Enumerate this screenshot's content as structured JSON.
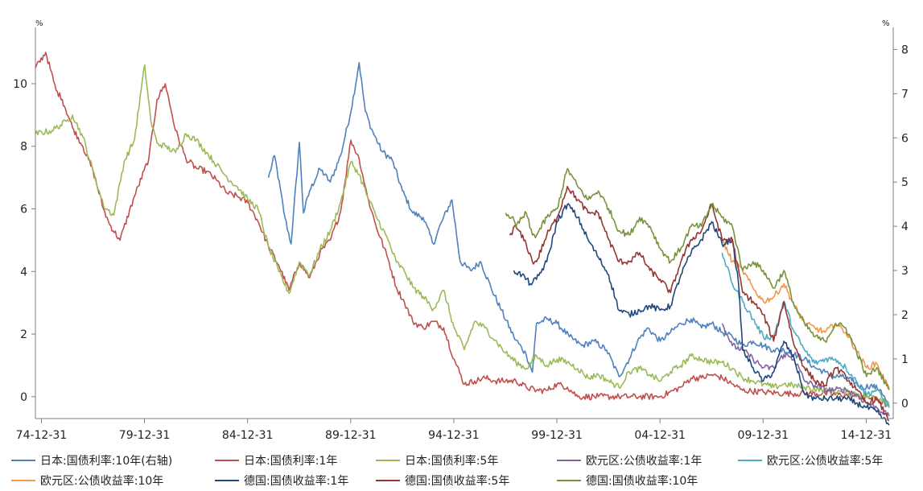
{
  "chart_data": {
    "type": "line",
    "left_axis": {
      "unit": "%",
      "ticks": [
        0,
        2,
        4,
        6,
        8,
        10
      ],
      "tick_labels": [
        "0",
        "2",
        "4",
        "6",
        "8",
        "10"
      ],
      "ylim": [
        -0.7,
        11.8
      ]
    },
    "right_axis": {
      "unit": "%",
      "ticks": [
        0,
        1,
        2,
        3,
        4,
        5,
        6,
        7,
        8
      ],
      "tick_labels": [
        "0",
        "1",
        "2",
        "3",
        "4",
        "5",
        "6",
        "7",
        "8"
      ],
      "ylim": [
        -0.35,
        8.5
      ]
    },
    "x_ticks": [
      "74-12-31",
      "79-12-31",
      "84-12-31",
      "89-12-31",
      "94-12-31",
      "99-12-31",
      "04-12-31",
      "09-12-31",
      "14-12-31"
    ],
    "x_tick_years": [
      1974.99,
      1979.99,
      1984.99,
      1989.99,
      1994.99,
      1999.99,
      2004.99,
      2009.99,
      2014.99
    ],
    "xlim": [
      1974.7,
      2016.3
    ],
    "grid": false,
    "legend_position": "bottom",
    "series": [
      {
        "name": "日本:国债利率:10年(右轴)",
        "color": "#4f81bd",
        "axis": "right",
        "x": [
          1986.0,
          1986.3,
          1986.8,
          1987.1,
          1987.5,
          1987.7,
          1988.0,
          1988.5,
          1989.0,
          1989.5,
          1990.0,
          1990.4,
          1990.7,
          1991.0,
          1991.5,
          1992.0,
          1992.5,
          1993.0,
          1993.5,
          1994.0,
          1994.4,
          1994.9,
          1995.3,
          1995.8,
          1996.3,
          1996.8,
          1997.3,
          1997.9,
          1998.5,
          1998.8,
          1999.0,
          1999.5,
          2000.0,
          2000.6,
          2001.2,
          2001.8,
          2002.4,
          2003.0,
          2003.5,
          2003.9,
          2004.4,
          2005.0,
          2005.5,
          2006.0,
          2006.5,
          2007.0,
          2007.5,
          2008.0,
          2008.5,
          2009.0,
          2009.5,
          2010.0,
          2010.5,
          2011.0,
          2011.5,
          2012.0,
          2012.5,
          2013.0,
          2013.3,
          2013.8,
          2014.3,
          2014.8,
          2015.2,
          2015.7,
          2016.1
        ],
        "y": [
          5.1,
          5.6,
          4.2,
          3.6,
          5.9,
          4.3,
          4.8,
          5.3,
          5.0,
          5.6,
          6.6,
          7.7,
          6.6,
          6.2,
          5.7,
          5.5,
          4.8,
          4.3,
          4.2,
          3.6,
          4.1,
          4.6,
          3.2,
          3.0,
          3.2,
          2.6,
          2.1,
          1.5,
          1.1,
          0.7,
          1.8,
          1.9,
          1.8,
          1.5,
          1.3,
          1.4,
          1.2,
          0.6,
          1.0,
          1.4,
          1.7,
          1.4,
          1.6,
          1.8,
          1.9,
          1.7,
          1.8,
          1.6,
          1.5,
          1.3,
          1.4,
          1.3,
          1.2,
          1.2,
          1.1,
          1.0,
          0.8,
          0.7,
          0.6,
          0.6,
          0.5,
          0.35,
          0.4,
          0.3,
          -0.1
        ]
      },
      {
        "name": "日本:国债利率:1年",
        "color": "#c0504d",
        "axis": "left",
        "x": [
          1974.7,
          1975.2,
          1975.7,
          1976.0,
          1976.5,
          1977.0,
          1977.5,
          1978.0,
          1978.3,
          1978.8,
          1979.5,
          1980.2,
          1980.6,
          1981.0,
          1981.5,
          1982.0,
          1982.5,
          1983.0,
          1983.5,
          1984.0,
          1984.5,
          1985.0,
          1985.5,
          1986.0,
          1986.5,
          1987.0,
          1987.5,
          1988.0,
          1988.5,
          1989.0,
          1989.5,
          1990.0,
          1990.4,
          1990.8,
          1991.2,
          1991.8,
          1992.2,
          1992.6,
          1993.0,
          1993.5,
          1994.0,
          1994.5,
          1995.0,
          1995.5,
          1996.0,
          1996.5,
          1997.0,
          1997.5,
          1998.0,
          1998.5,
          1999.0,
          1999.5,
          2000.0,
          2000.5,
          2001.0,
          2002.0,
          2003.0,
          2004.0,
          2005.0,
          2006.0,
          2006.5,
          2007.0,
          2007.5,
          2008.0,
          2008.5,
          2009.0,
          2010.0,
          2011.0,
          2012.0,
          2013.0,
          2014.0,
          2014.5,
          2015.0,
          2015.5,
          2016.1
        ],
        "y": [
          10.5,
          11.0,
          9.8,
          9.5,
          8.6,
          8.0,
          7.2,
          6.0,
          5.5,
          5.0,
          6.4,
          7.6,
          9.5,
          10.0,
          8.5,
          7.6,
          7.3,
          7.2,
          6.9,
          6.5,
          6.4,
          6.2,
          5.6,
          4.8,
          4.2,
          3.4,
          4.3,
          3.8,
          4.6,
          5.0,
          5.9,
          8.2,
          7.6,
          6.4,
          5.5,
          4.4,
          3.5,
          3.0,
          2.4,
          2.2,
          2.4,
          2.2,
          1.2,
          0.4,
          0.5,
          0.6,
          0.5,
          0.5,
          0.5,
          0.3,
          0.2,
          0.2,
          0.4,
          0.3,
          0.0,
          0.0,
          0.0,
          0.0,
          0.0,
          0.3,
          0.6,
          0.6,
          0.7,
          0.6,
          0.4,
          0.2,
          0.15,
          0.1,
          0.1,
          0.1,
          0.05,
          0.0,
          0.0,
          -0.1,
          -0.3
        ]
      },
      {
        "name": "日本:国债利率:5年",
        "color": "#9bbb59",
        "axis": "left",
        "x": [
          1974.7,
          1975.5,
          1976.2,
          1976.5,
          1977.0,
          1977.5,
          1978.0,
          1978.5,
          1979.0,
          1979.5,
          1980.0,
          1980.3,
          1980.6,
          1981.0,
          1981.5,
          1982.0,
          1982.5,
          1983.0,
          1983.5,
          1984.0,
          1984.5,
          1985.0,
          1985.5,
          1986.0,
          1986.5,
          1987.0,
          1987.5,
          1988.0,
          1988.5,
          1989.0,
          1989.5,
          1990.0,
          1990.4,
          1990.8,
          1991.2,
          1991.8,
          1992.2,
          1992.6,
          1993.0,
          1993.5,
          1994.0,
          1994.5,
          1995.0,
          1995.5,
          1996.0,
          1996.5,
          1997.0,
          1997.5,
          1998.0,
          1998.5,
          1999.0,
          1999.5,
          2000.0,
          2000.5,
          2001.0,
          2001.5,
          2002.0,
          2002.5,
          2003.0,
          2003.5,
          2004.0,
          2004.5,
          2005.0,
          2005.5,
          2006.0,
          2006.5,
          2007.0,
          2007.5,
          2008.0,
          2008.5,
          2009.0,
          2009.5,
          2010.0,
          2010.5,
          2011.0,
          2012.0,
          2013.0,
          2014.0,
          2014.5,
          2015.0,
          2015.5,
          2016.1
        ],
        "y": [
          8.4,
          8.5,
          8.8,
          9.0,
          8.3,
          7.2,
          6.1,
          5.8,
          7.5,
          8.2,
          10.6,
          8.8,
          8.1,
          8.0,
          7.8,
          8.4,
          8.2,
          7.8,
          7.4,
          7.0,
          6.7,
          6.3,
          6.0,
          4.8,
          4.0,
          3.3,
          4.3,
          3.9,
          4.7,
          5.3,
          6.2,
          7.5,
          7.1,
          6.4,
          5.8,
          5.0,
          4.3,
          4.0,
          3.5,
          3.2,
          2.8,
          3.4,
          2.2,
          1.5,
          2.4,
          2.2,
          1.8,
          1.4,
          1.1,
          0.9,
          1.3,
          1.0,
          1.2,
          1.1,
          0.9,
          0.6,
          0.7,
          0.5,
          0.3,
          0.8,
          0.9,
          0.7,
          0.5,
          0.8,
          1.0,
          1.3,
          1.2,
          1.1,
          1.1,
          0.9,
          0.6,
          0.5,
          0.4,
          0.3,
          0.4,
          0.3,
          0.2,
          0.15,
          0.1,
          0.0,
          0.0,
          -0.2
        ]
      },
      {
        "name": "欧元区:公债收益率:1年",
        "color": "#8064a2",
        "axis": "right",
        "x": [
          2008.0,
          2008.5,
          2009.0,
          2009.5,
          2010.0,
          2010.5,
          2011.0,
          2011.5,
          2012.0,
          2012.5,
          2013.0,
          2013.5,
          2014.0,
          2014.5,
          2015.0,
          2015.5,
          2016.1
        ],
        "y": [
          1.8,
          1.3,
          1.2,
          1.0,
          0.8,
          0.8,
          1.1,
          1.0,
          0.5,
          0.4,
          0.3,
          0.3,
          0.3,
          0.2,
          0.0,
          -0.1,
          -0.3
        ]
      },
      {
        "name": "欧元区:公债收益率:5年",
        "color": "#4bacc6",
        "axis": "right",
        "x": [
          2008.0,
          2008.5,
          2009.0,
          2009.5,
          2010.0,
          2010.5,
          2011.0,
          2011.5,
          2012.0,
          2012.5,
          2013.0,
          2013.5,
          2014.0,
          2014.5,
          2015.0,
          2015.5,
          2016.1
        ],
        "y": [
          3.4,
          2.7,
          2.3,
          1.9,
          1.5,
          1.5,
          2.3,
          1.6,
          1.2,
          0.9,
          1.0,
          1.0,
          0.8,
          0.5,
          0.2,
          0.3,
          -0.1
        ]
      },
      {
        "name": "欧元区:公债收益率:10年",
        "color": "#f79646",
        "axis": "right",
        "x": [
          2008.0,
          2008.5,
          2009.0,
          2009.5,
          2010.0,
          2010.5,
          2011.0,
          2011.5,
          2012.0,
          2012.5,
          2013.0,
          2013.5,
          2014.0,
          2014.5,
          2015.0,
          2015.5,
          2016.1
        ],
        "y": [
          3.7,
          3.2,
          3.0,
          2.6,
          2.3,
          2.4,
          2.7,
          2.2,
          1.8,
          1.7,
          1.6,
          1.8,
          1.6,
          1.2,
          0.8,
          0.9,
          0.3
        ]
      },
      {
        "name": "德国:国债收益率:1年",
        "color": "#1f497d",
        "axis": "right",
        "x": [
          1997.9,
          1998.3,
          1998.7,
          1999.0,
          1999.5,
          2000.0,
          2000.5,
          2001.0,
          2001.5,
          2002.0,
          2002.5,
          2003.0,
          2003.5,
          2004.0,
          2004.5,
          2005.0,
          2005.5,
          2006.0,
          2006.5,
          2007.0,
          2007.5,
          2008.0,
          2008.5,
          2008.8,
          2009.0,
          2009.5,
          2010.0,
          2010.5,
          2011.0,
          2011.5,
          2012.0,
          2012.5,
          2013.0,
          2014.0,
          2014.5,
          2015.0,
          2015.5,
          2016.1
        ],
        "y": [
          3.0,
          2.9,
          2.7,
          2.8,
          3.2,
          4.1,
          4.5,
          4.2,
          3.7,
          3.3,
          2.9,
          2.1,
          2.0,
          2.1,
          2.2,
          2.1,
          2.2,
          2.9,
          3.4,
          3.7,
          4.1,
          3.6,
          3.7,
          2.7,
          1.2,
          0.8,
          0.5,
          0.7,
          1.4,
          1.0,
          0.2,
          0.1,
          0.1,
          0.1,
          0.0,
          -0.1,
          -0.2,
          -0.5
        ]
      },
      {
        "name": "德国:国债收益率:5年",
        "color": "#943634",
        "axis": "right",
        "x": [
          1997.7,
          1998.0,
          1998.5,
          1998.8,
          1999.0,
          1999.5,
          2000.0,
          2000.5,
          2001.0,
          2001.5,
          2002.0,
          2002.5,
          2003.0,
          2003.5,
          2004.0,
          2004.5,
          2005.0,
          2005.5,
          2006.0,
          2006.5,
          2007.0,
          2007.5,
          2008.0,
          2008.5,
          2009.0,
          2009.5,
          2010.0,
          2010.5,
          2011.0,
          2011.5,
          2012.0,
          2012.5,
          2013.0,
          2013.5,
          2014.0,
          2014.5,
          2015.0,
          2015.5,
          2016.1
        ],
        "y": [
          3.8,
          4.0,
          3.6,
          3.2,
          3.2,
          3.8,
          4.2,
          4.9,
          4.6,
          4.3,
          4.3,
          3.7,
          3.2,
          3.2,
          3.4,
          3.0,
          2.8,
          2.5,
          3.2,
          3.7,
          3.9,
          4.5,
          3.7,
          3.7,
          2.5,
          2.3,
          2.0,
          1.4,
          2.3,
          1.3,
          0.8,
          0.5,
          0.4,
          0.8,
          0.6,
          0.3,
          0.0,
          0.1,
          -0.4
        ]
      },
      {
        "name": "德国:国债收益率:10年",
        "color": "#77933c",
        "axis": "right",
        "x": [
          1997.5,
          1997.8,
          1998.0,
          1998.5,
          1998.8,
          1999.0,
          1999.5,
          2000.0,
          2000.5,
          2001.0,
          2001.5,
          2002.0,
          2002.5,
          2003.0,
          2003.5,
          2004.0,
          2004.5,
          2005.0,
          2005.5,
          2006.0,
          2006.5,
          2007.0,
          2007.5,
          2008.0,
          2008.5,
          2009.0,
          2009.5,
          2010.0,
          2010.5,
          2011.0,
          2011.5,
          2012.0,
          2012.5,
          2013.0,
          2013.5,
          2014.0,
          2014.5,
          2015.0,
          2015.5,
          2016.1
        ],
        "y": [
          4.3,
          4.2,
          4.0,
          4.3,
          3.8,
          3.8,
          4.2,
          4.4,
          5.3,
          4.9,
          4.6,
          4.8,
          4.4,
          3.9,
          3.8,
          4.2,
          4.0,
          3.5,
          3.2,
          3.5,
          4.0,
          4.0,
          4.5,
          4.2,
          4.0,
          3.0,
          3.2,
          3.0,
          2.6,
          3.0,
          2.2,
          1.8,
          1.5,
          1.4,
          1.8,
          1.7,
          1.2,
          0.6,
          0.8,
          0.3
        ]
      }
    ]
  }
}
